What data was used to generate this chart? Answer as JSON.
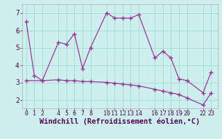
{
  "line1_x": [
    0,
    1,
    2,
    4,
    5,
    6,
    7,
    8,
    10,
    11,
    12,
    13,
    14,
    16,
    17,
    18,
    19,
    20,
    22,
    23
  ],
  "line1_y": [
    6.5,
    3.4,
    3.1,
    5.3,
    5.2,
    5.8,
    3.8,
    5.0,
    7.0,
    6.7,
    6.7,
    6.7,
    6.9,
    4.4,
    4.8,
    4.4,
    3.2,
    3.1,
    2.4,
    3.6
  ],
  "line2_x": [
    0,
    2,
    4,
    5,
    6,
    7,
    8,
    10,
    11,
    12,
    13,
    14,
    16,
    17,
    18,
    19,
    20,
    22,
    23
  ],
  "line2_y": [
    3.1,
    3.1,
    3.15,
    3.1,
    3.1,
    3.05,
    3.05,
    3.0,
    2.95,
    2.9,
    2.85,
    2.8,
    2.6,
    2.5,
    2.4,
    2.3,
    2.1,
    1.7,
    2.4
  ],
  "color": "#993399",
  "bg_color": "#cdf0ee",
  "grid_color": "#a8ddd8",
  "xlabel": "Windchill (Refroidissement éolien,°C)",
  "xlim": [
    -0.5,
    23.8
  ],
  "ylim": [
    1.5,
    7.5
  ],
  "xticks": [
    0,
    1,
    2,
    4,
    5,
    6,
    7,
    8,
    10,
    11,
    12,
    13,
    14,
    16,
    17,
    18,
    19,
    20,
    22,
    23
  ],
  "yticks": [
    2,
    3,
    4,
    5,
    6,
    7
  ],
  "marker": "+",
  "linewidth": 0.9,
  "markersize": 4,
  "xlabel_color": "#550055"
}
